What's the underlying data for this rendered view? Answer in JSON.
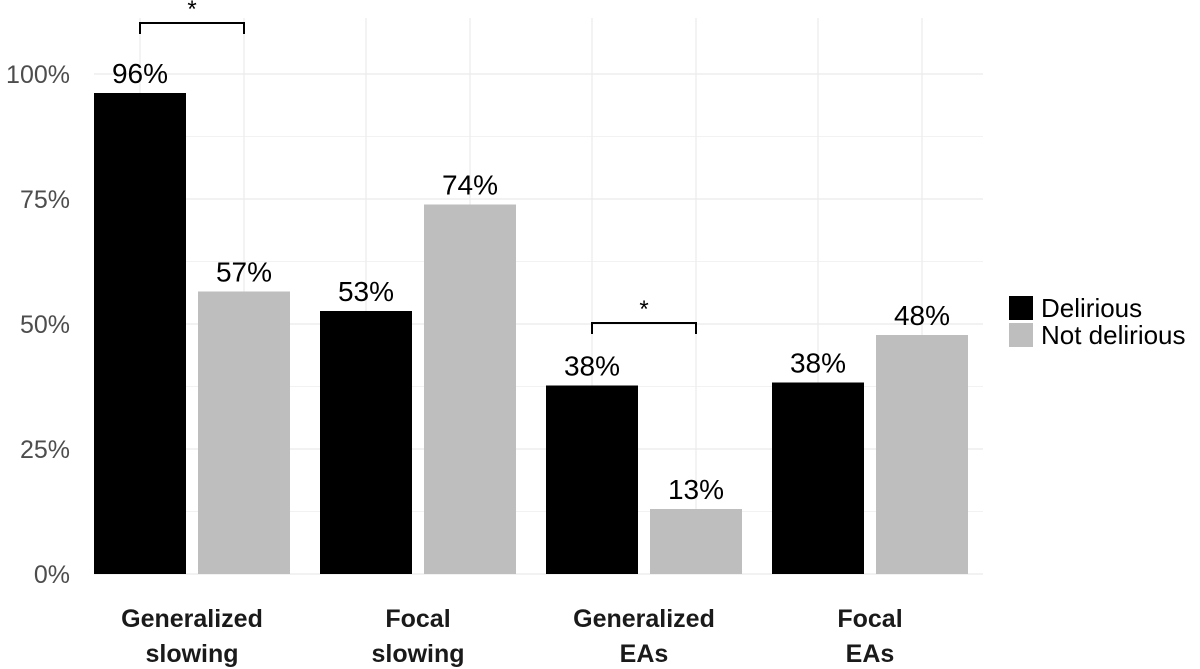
{
  "chart_data": {
    "type": "bar",
    "categories": [
      [
        "Generalized",
        "slowing"
      ],
      [
        "Focal",
        "slowing"
      ],
      [
        "Generalized",
        "EAs"
      ],
      [
        "Focal",
        "EAs"
      ]
    ],
    "series": [
      {
        "name": "Delirious",
        "color": "#000000",
        "values": [
          96.2,
          52.6,
          37.7,
          38.3
        ],
        "labels": [
          "96%",
          "53%",
          "38%",
          "38%"
        ]
      },
      {
        "name": "Not delirious",
        "color": "#bebebe",
        "values": [
          56.5,
          73.9,
          13.0,
          47.8
        ],
        "labels": [
          "57%",
          "74%",
          "13%",
          "48%"
        ]
      }
    ],
    "yticks": [
      {
        "value": 0,
        "label": "0%"
      },
      {
        "value": 25,
        "label": "25%"
      },
      {
        "value": 50,
        "label": "50%"
      },
      {
        "value": 75,
        "label": "75%"
      },
      {
        "value": 100,
        "label": "100%"
      }
    ],
    "ylim": [
      0,
      100
    ],
    "significance": [
      {
        "category": 0,
        "label": "*"
      },
      {
        "category": 2,
        "label": "*"
      }
    ],
    "legend_position": "right",
    "grid": true
  }
}
